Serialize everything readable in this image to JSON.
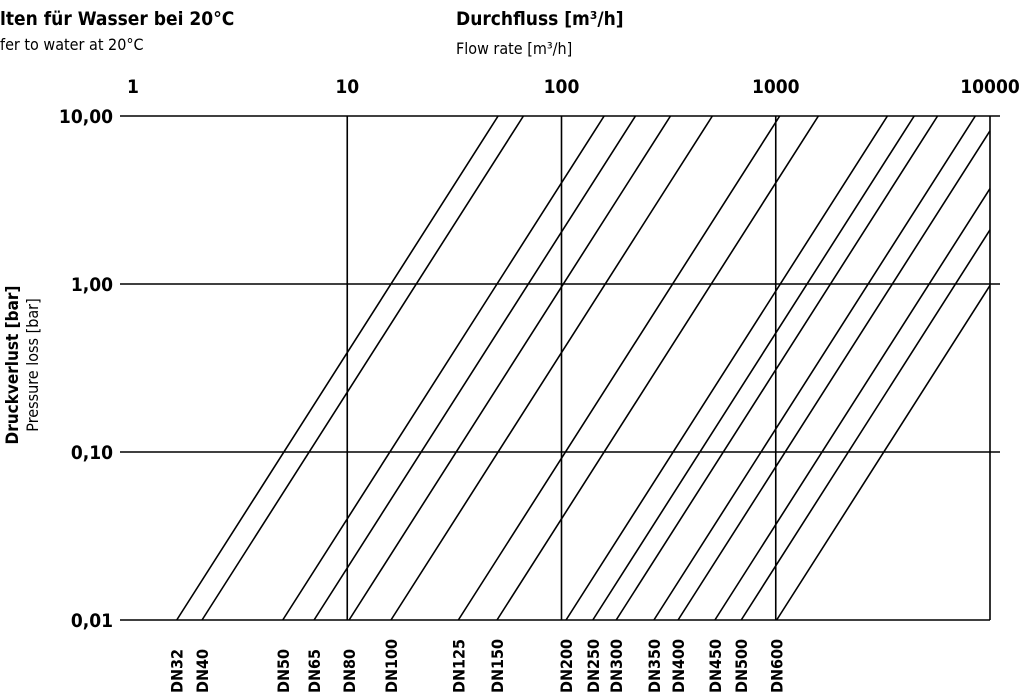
{
  "chart_data": {
    "type": "line",
    "title_de": "lten für Wasser bei 20°C",
    "title_en": "fer to water at 20°C",
    "xlabel_de": "Durchfluss [m³/h]",
    "xlabel_en": "Flow rate [m³/h]",
    "ylabel_de": "Druckverlust [bar]",
    "ylabel_en": "Pressure loss [bar]",
    "x_scale": "log",
    "y_scale": "log",
    "xlim": [
      1,
      10000
    ],
    "ylim": [
      0.01,
      10
    ],
    "x_ticks": [
      "1",
      "10",
      "100",
      "1000",
      "10000"
    ],
    "y_ticks": [
      "10,00",
      "1,00",
      "0,10",
      "0,01"
    ],
    "grid": true,
    "series": [
      {
        "name": "DN32",
        "flow_at_001_bar": 1.6
      },
      {
        "name": "DN40",
        "flow_at_001_bar": 2.1
      },
      {
        "name": "DN50",
        "flow_at_001_bar": 5.0
      },
      {
        "name": "DN65",
        "flow_at_001_bar": 7.0
      },
      {
        "name": "DN80",
        "flow_at_001_bar": 10.2
      },
      {
        "name": "DN100",
        "flow_at_001_bar": 16
      },
      {
        "name": "DN125",
        "flow_at_001_bar": 33
      },
      {
        "name": "DN150",
        "flow_at_001_bar": 50
      },
      {
        "name": "DN200",
        "flow_at_001_bar": 105
      },
      {
        "name": "DN250",
        "flow_at_001_bar": 140
      },
      {
        "name": "DN300",
        "flow_at_001_bar": 180
      },
      {
        "name": "DN350",
        "flow_at_001_bar": 270
      },
      {
        "name": "DN400",
        "flow_at_001_bar": 350
      },
      {
        "name": "DN450",
        "flow_at_001_bar": 520
      },
      {
        "name": "DN500",
        "flow_at_001_bar": 690
      },
      {
        "name": "DN600",
        "flow_at_001_bar": 1010
      }
    ],
    "slope_log_decades": 2.0
  }
}
